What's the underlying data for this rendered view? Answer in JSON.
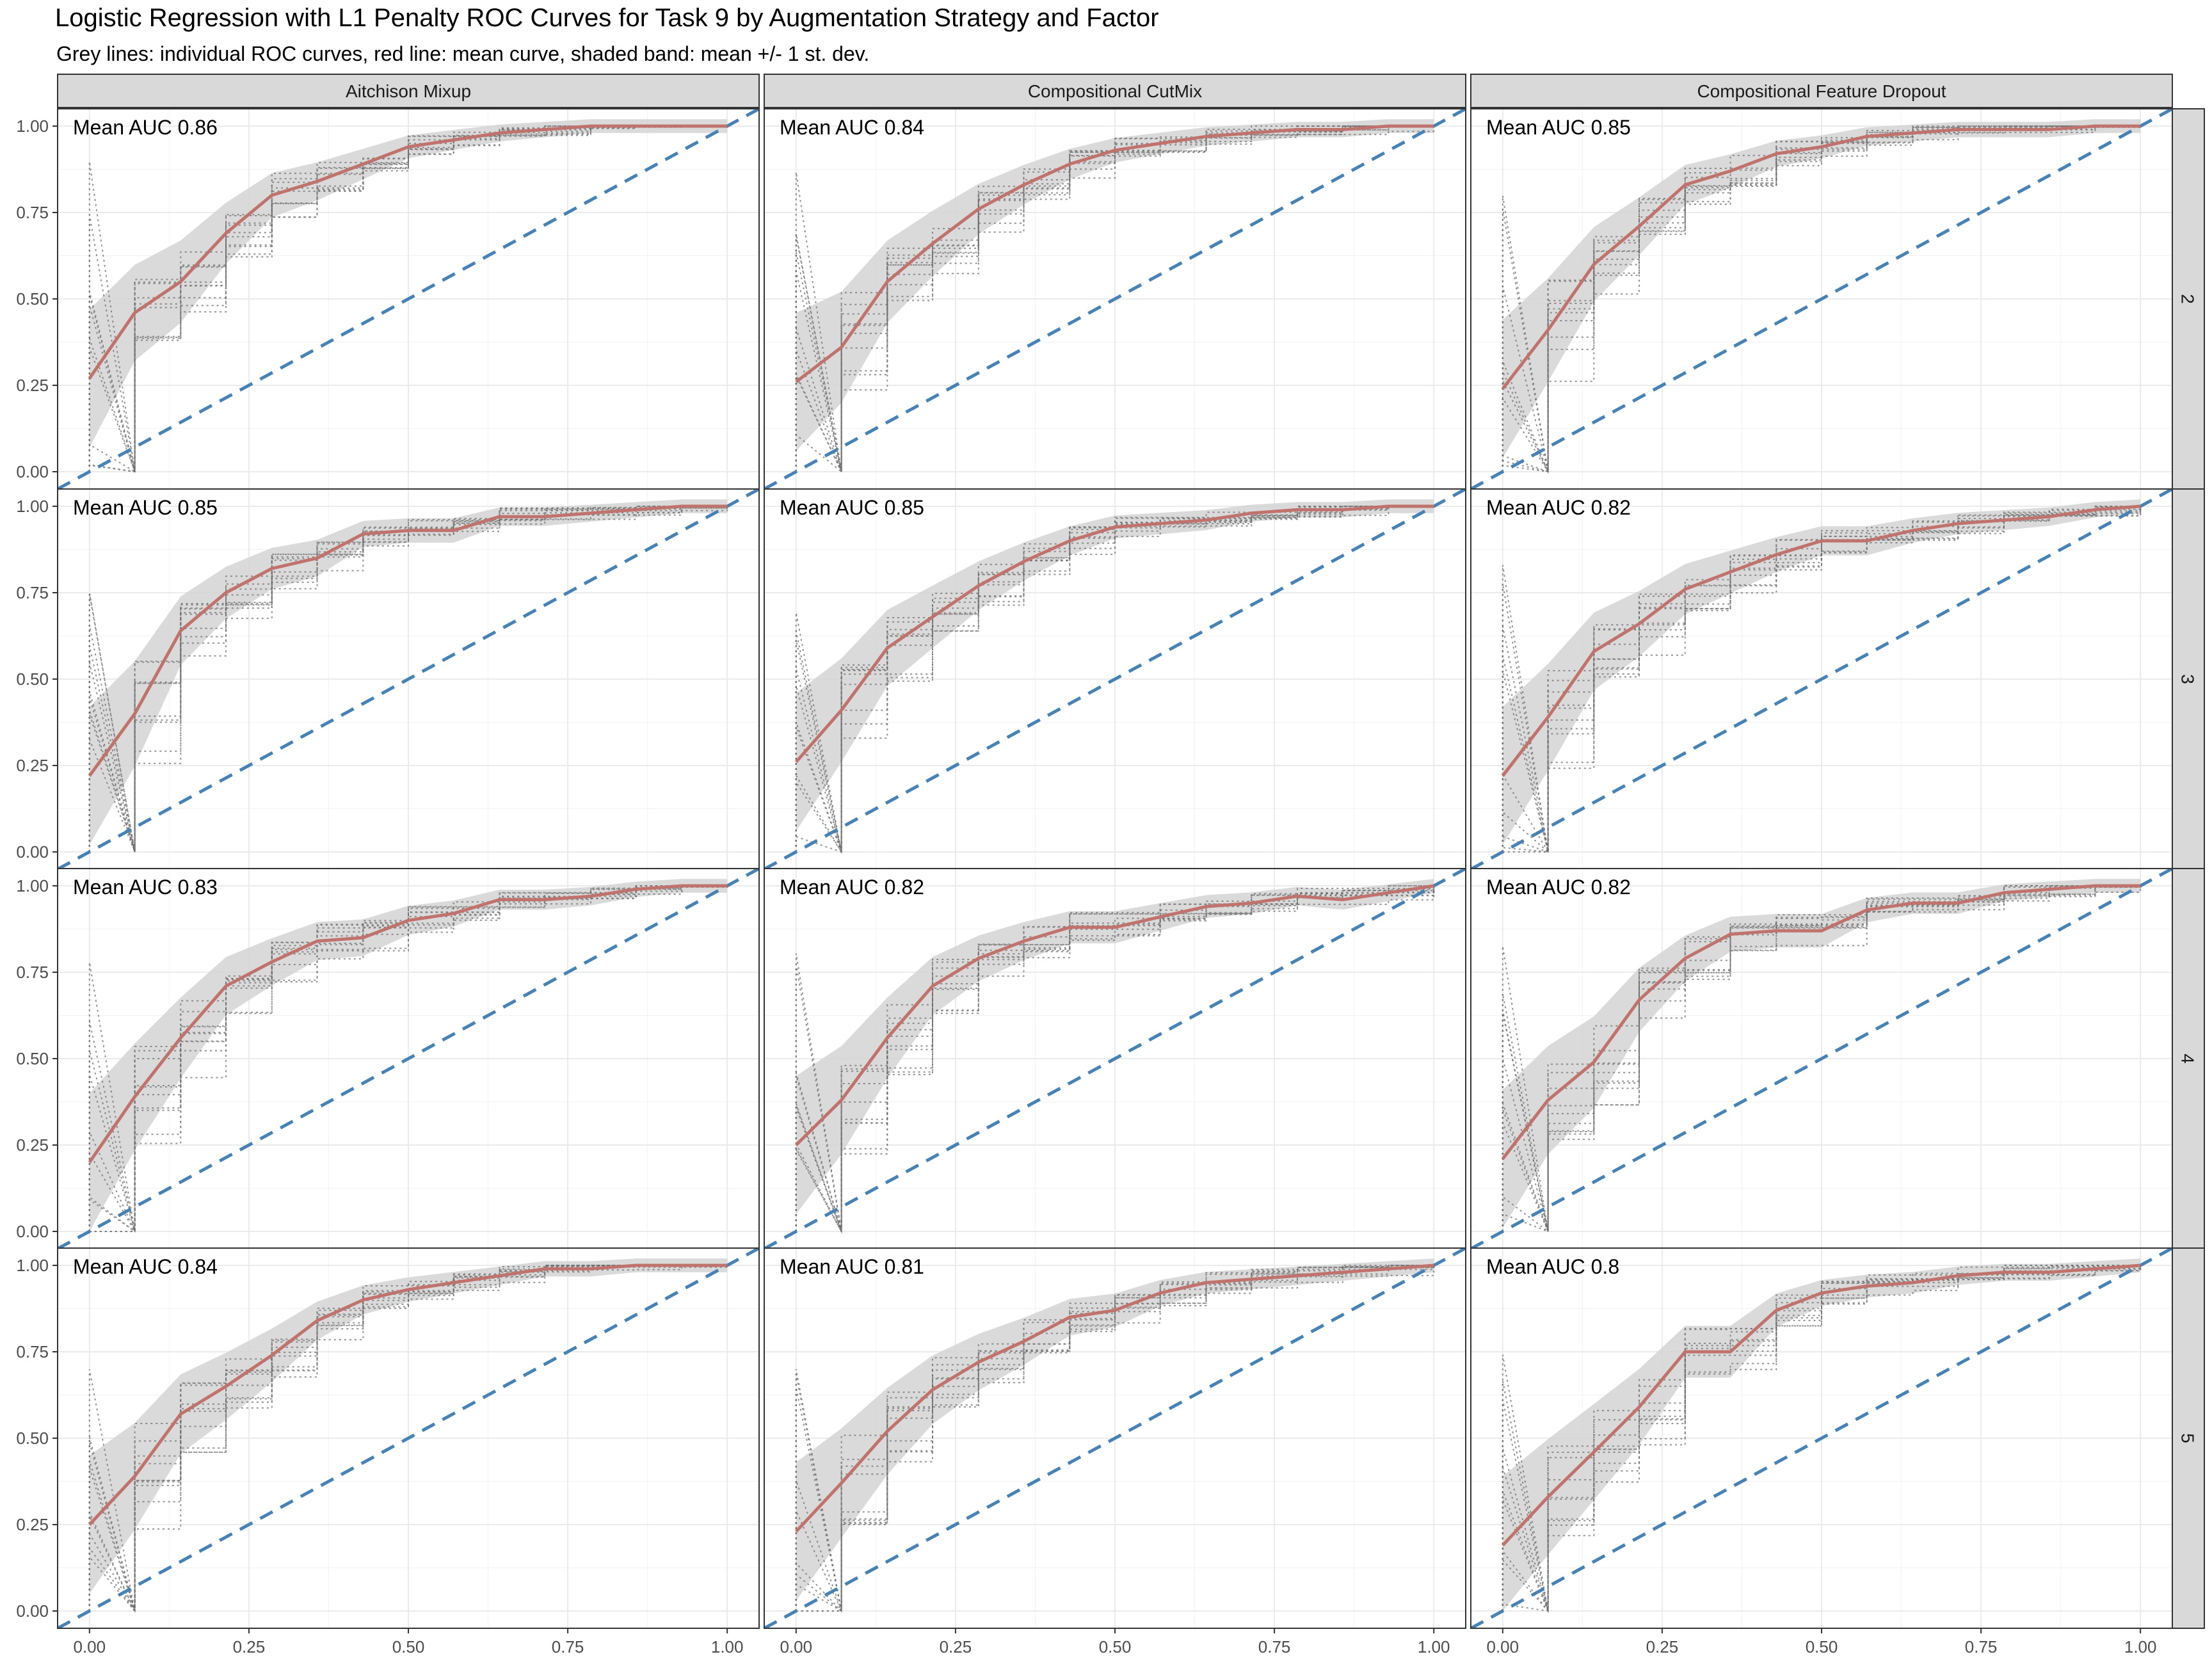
{
  "title": "Logistic Regression with L1 Penalty ROC Curves for Task 9 by Augmentation Strategy and Factor",
  "subtitle": "Grey lines: individual ROC curves, red line: mean curve, shaded band: mean +/- 1 st. dev.",
  "colors": {
    "mean_curve": "#C0736D",
    "band": "#D3D3D3",
    "individual_curves": "#6E6E6E",
    "diagonal": "#4682B4",
    "strip_bg": "#D9D9D9",
    "grid": "#EBEBEB"
  },
  "chart_data": {
    "type": "line",
    "facet_columns": [
      "Aitchison Mixup",
      "Compositional CutMix",
      "Compositional Feature Dropout"
    ],
    "facet_rows": [
      "2",
      "3",
      "4",
      "5"
    ],
    "x_ticks": [
      "0.00",
      "0.25",
      "0.50",
      "0.75",
      "1.00"
    ],
    "y_ticks": [
      "0.00",
      "0.25",
      "0.50",
      "0.75",
      "1.00"
    ],
    "xlim": [
      -0.05,
      1.05
    ],
    "ylim": [
      -0.05,
      1.05
    ],
    "grid": true,
    "x": [
      0,
      0.071,
      0.143,
      0.214,
      0.286,
      0.357,
      0.429,
      0.5,
      0.571,
      0.643,
      0.714,
      0.786,
      0.857,
      0.929,
      1.0
    ],
    "panels": [
      {
        "column": "Aitchison Mixup",
        "row": "2",
        "auc_label": "Mean AUC 0.86",
        "mean": [
          0.27,
          0.46,
          0.55,
          0.69,
          0.8,
          0.84,
          0.89,
          0.94,
          0.96,
          0.98,
          0.99,
          1.0,
          1.0,
          1.0,
          1.0
        ]
      },
      {
        "column": "Compositional CutMix",
        "row": "2",
        "auc_label": "Mean AUC 0.84",
        "mean": [
          0.26,
          0.36,
          0.55,
          0.66,
          0.76,
          0.83,
          0.89,
          0.93,
          0.95,
          0.97,
          0.98,
          0.99,
          0.99,
          1.0,
          1.0
        ]
      },
      {
        "column": "Compositional Feature Dropout",
        "row": "2",
        "auc_label": "Mean AUC 0.85",
        "mean": [
          0.24,
          0.41,
          0.6,
          0.71,
          0.83,
          0.87,
          0.92,
          0.94,
          0.97,
          0.98,
          0.99,
          0.99,
          0.99,
          1.0,
          1.0
        ]
      },
      {
        "column": "Aitchison Mixup",
        "row": "3",
        "auc_label": "Mean AUC 0.85",
        "mean": [
          0.22,
          0.4,
          0.64,
          0.75,
          0.82,
          0.85,
          0.92,
          0.93,
          0.93,
          0.97,
          0.97,
          0.98,
          0.99,
          1.0,
          1.0
        ]
      },
      {
        "column": "Compositional CutMix",
        "row": "3",
        "auc_label": "Mean AUC 0.85",
        "mean": [
          0.26,
          0.41,
          0.59,
          0.68,
          0.77,
          0.84,
          0.9,
          0.94,
          0.95,
          0.96,
          0.98,
          0.99,
          0.99,
          1.0,
          1.0
        ]
      },
      {
        "column": "Compositional Feature Dropout",
        "row": "3",
        "auc_label": "Mean AUC 0.82",
        "mean": [
          0.22,
          0.39,
          0.58,
          0.66,
          0.76,
          0.81,
          0.86,
          0.9,
          0.9,
          0.93,
          0.95,
          0.96,
          0.97,
          0.99,
          1.0
        ]
      },
      {
        "column": "Aitchison Mixup",
        "row": "4",
        "auc_label": "Mean AUC 0.83",
        "mean": [
          0.2,
          0.39,
          0.56,
          0.71,
          0.78,
          0.84,
          0.85,
          0.9,
          0.92,
          0.96,
          0.96,
          0.97,
          0.99,
          1.0,
          1.0
        ]
      },
      {
        "column": "Compositional CutMix",
        "row": "4",
        "auc_label": "Mean AUC 0.82",
        "mean": [
          0.25,
          0.38,
          0.56,
          0.71,
          0.79,
          0.84,
          0.88,
          0.88,
          0.91,
          0.94,
          0.95,
          0.97,
          0.96,
          0.98,
          1.0
        ]
      },
      {
        "column": "Compositional Feature Dropout",
        "row": "4",
        "auc_label": "Mean AUC 0.82",
        "mean": [
          0.21,
          0.38,
          0.49,
          0.67,
          0.79,
          0.86,
          0.87,
          0.87,
          0.93,
          0.95,
          0.95,
          0.98,
          0.99,
          1.0,
          1.0
        ]
      },
      {
        "column": "Aitchison Mixup",
        "row": "5",
        "auc_label": "Mean AUC 0.84",
        "mean": [
          0.25,
          0.39,
          0.57,
          0.65,
          0.74,
          0.84,
          0.9,
          0.93,
          0.95,
          0.97,
          0.99,
          0.99,
          1.0,
          1.0,
          1.0
        ]
      },
      {
        "column": "Compositional CutMix",
        "row": "5",
        "auc_label": "Mean AUC 0.81",
        "mean": [
          0.23,
          0.37,
          0.52,
          0.64,
          0.72,
          0.78,
          0.85,
          0.87,
          0.92,
          0.95,
          0.96,
          0.97,
          0.98,
          0.99,
          1.0
        ]
      },
      {
        "column": "Compositional Feature Dropout",
        "row": "5",
        "auc_label": "Mean AUC 0.8",
        "mean": [
          0.19,
          0.33,
          0.46,
          0.59,
          0.75,
          0.75,
          0.87,
          0.92,
          0.94,
          0.95,
          0.97,
          0.98,
          0.98,
          0.99,
          1.0
        ]
      }
    ]
  }
}
